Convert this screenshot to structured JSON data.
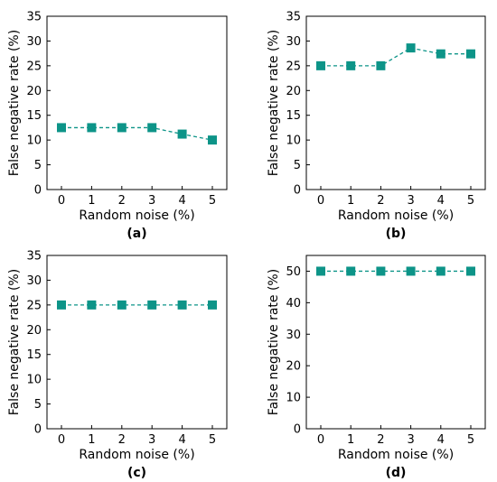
{
  "chart_data": [
    {
      "type": "line",
      "panel_label": "(a)",
      "xlabel": "Random noise (%)",
      "ylabel": "False negative rate (%)",
      "x": [
        0,
        1,
        2,
        3,
        4,
        5
      ],
      "xticks": [
        "0",
        "1",
        "2",
        "3",
        "4",
        "5"
      ],
      "ylim": [
        0,
        35
      ],
      "yticks": [
        "0",
        "5",
        "10",
        "15",
        "20",
        "25",
        "30",
        "35"
      ],
      "series": [
        {
          "values": [
            12.5,
            12.5,
            12.5,
            12.5,
            11.2,
            10.0
          ],
          "color": "#0d9488",
          "marker": "square",
          "line_style": "dashed"
        }
      ],
      "grid": false
    },
    {
      "type": "line",
      "panel_label": "(b)",
      "xlabel": "Random noise (%)",
      "ylabel": "False negative rate (%)",
      "x": [
        0,
        1,
        2,
        3,
        4,
        5
      ],
      "xticks": [
        "0",
        "1",
        "2",
        "3",
        "4",
        "5"
      ],
      "ylim": [
        0,
        35
      ],
      "yticks": [
        "0",
        "5",
        "10",
        "15",
        "20",
        "25",
        "30",
        "35"
      ],
      "series": [
        {
          "values": [
            25.0,
            25.0,
            25.0,
            28.6,
            27.4,
            27.4
          ],
          "color": "#0d9488",
          "marker": "square",
          "line_style": "dashed"
        }
      ],
      "grid": false
    },
    {
      "type": "line",
      "panel_label": "(c)",
      "xlabel": "Random noise (%)",
      "ylabel": "False negative rate (%)",
      "x": [
        0,
        1,
        2,
        3,
        4,
        5
      ],
      "xticks": [
        "0",
        "1",
        "2",
        "3",
        "4",
        "5"
      ],
      "ylim": [
        0,
        35
      ],
      "yticks": [
        "0",
        "5",
        "10",
        "15",
        "20",
        "25",
        "30",
        "35"
      ],
      "series": [
        {
          "values": [
            25.0,
            25.0,
            25.0,
            25.0,
            25.0,
            25.0
          ],
          "color": "#0d9488",
          "marker": "square",
          "line_style": "dashed"
        }
      ],
      "grid": false
    },
    {
      "type": "line",
      "panel_label": "(d)",
      "xlabel": "Random noise (%)",
      "ylabel": "False negative rate (%)",
      "x": [
        0,
        1,
        2,
        3,
        4,
        5
      ],
      "xticks": [
        "0",
        "1",
        "2",
        "3",
        "4",
        "5"
      ],
      "ylim": [
        0,
        55
      ],
      "yticks": [
        "0",
        "10",
        "20",
        "30",
        "40",
        "50"
      ],
      "series": [
        {
          "values": [
            50.0,
            50.0,
            50.0,
            50.0,
            50.0,
            50.0
          ],
          "color": "#0d9488",
          "marker": "square",
          "line_style": "dashed"
        }
      ],
      "grid": false
    }
  ]
}
